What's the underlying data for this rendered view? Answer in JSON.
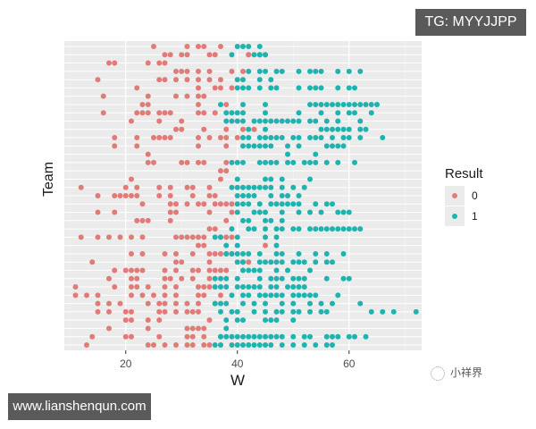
{
  "badges": {
    "top_right": "TG: MYYJJPP",
    "bottom_left": "www.lianshenqun.com"
  },
  "watermark": {
    "icon": "wechat-channel-icon",
    "text": "小祥界"
  },
  "colors": {
    "panel_bg": "#ebebeb",
    "grid_major": "#ffffff",
    "grid_minor": "#f5f5f5",
    "result_0": "#e07b77",
    "result_1": "#1fb3b0"
  },
  "chart_data": {
    "type": "scatter",
    "title": "",
    "xlabel": "W",
    "ylabel": "Team",
    "xlim": [
      9,
      73
    ],
    "x_ticks": [
      20,
      40,
      60
    ],
    "x_tick_labels": [
      "20",
      "40",
      "60"
    ],
    "y_ticks_shown": false,
    "grid": true,
    "legend": {
      "title": "Result",
      "position": "right",
      "entries": [
        {
          "label": "0",
          "color": "#e07b77"
        },
        {
          "label": "1",
          "color": "#1fb3b0"
        }
      ]
    },
    "rows": [
      {
        "zero": [
          25,
          31,
          33,
          34,
          37
        ],
        "one": [
          40,
          41,
          42,
          44
        ]
      },
      {
        "zero": [
          27,
          28,
          30,
          31,
          35,
          36,
          42,
          42
        ],
        "one": [
          39,
          44,
          45,
          43,
          44,
          45
        ]
      },
      {
        "zero": [
          17,
          18,
          24,
          26,
          27
        ],
        "one": []
      },
      {
        "zero": [
          29,
          30,
          31,
          33,
          35,
          39,
          41
        ],
        "one": [
          42,
          44,
          45,
          47,
          48,
          51,
          53,
          54,
          55,
          58,
          60,
          62
        ]
      },
      {
        "zero": [
          15,
          26,
          27,
          29,
          31,
          33,
          35,
          37
        ],
        "one": [
          40,
          41,
          44,
          46
        ]
      },
      {
        "zero": [
          22,
          33,
          36,
          37,
          39
        ],
        "one": [
          40,
          41,
          42,
          44,
          46,
          47,
          51,
          53,
          54,
          55,
          58,
          60,
          61
        ]
      },
      {
        "zero": [
          16,
          24,
          29,
          31,
          33,
          34
        ],
        "one": []
      },
      {
        "zero": [
          23,
          24,
          33,
          38
        ],
        "one": [
          37,
          41,
          45,
          53,
          54,
          55,
          56,
          57,
          58,
          59,
          60,
          61,
          62,
          63,
          64,
          65
        ]
      },
      {
        "zero": [
          16,
          22,
          23,
          24,
          26,
          27,
          28,
          33,
          34,
          36
        ],
        "one": [
          38,
          39,
          40,
          41,
          45,
          51,
          55,
          58,
          60,
          61,
          64
        ]
      },
      {
        "zero": [
          21,
          26,
          30,
          40
        ],
        "one": [
          38,
          39,
          40,
          41,
          43,
          44,
          45,
          46,
          47,
          48,
          49,
          50,
          51,
          53,
          54,
          56,
          58,
          62
        ]
      },
      {
        "zero": [
          29,
          30,
          34,
          38,
          41,
          43
        ],
        "one": [
          42,
          45,
          55,
          56,
          57,
          58,
          59,
          60,
          62,
          63
        ]
      },
      {
        "zero": [
          18,
          22,
          25,
          26,
          27,
          28,
          33,
          35,
          37,
          38,
          40
        ],
        "one": [
          41,
          42,
          44,
          45,
          46,
          47,
          48,
          50,
          51,
          53,
          54,
          55,
          57,
          59,
          60,
          62,
          66
        ]
      },
      {
        "zero": [
          18,
          22,
          33,
          38
        ],
        "one": [
          41,
          42,
          43,
          44,
          45,
          46,
          49,
          51,
          56,
          57,
          58,
          59
        ]
      },
      {
        "zero": [
          24
        ],
        "one": [
          49,
          54
        ]
      },
      {
        "zero": [
          24,
          25,
          30,
          31,
          33,
          34,
          38
        ],
        "one": [
          39,
          40,
          41,
          44,
          45,
          46,
          47,
          49,
          50,
          52,
          53,
          54,
          56,
          58,
          61
        ]
      },
      {
        "zero": [
          37,
          38
        ],
        "one": []
      },
      {
        "zero": [
          21,
          37
        ],
        "one": [
          40,
          45,
          46,
          48,
          53
        ]
      },
      {
        "zero": [
          12,
          20,
          22,
          26,
          28,
          31,
          32,
          35
        ],
        "one": [
          39,
          40,
          41,
          42,
          43,
          44,
          45,
          46,
          48,
          50,
          52
        ]
      },
      {
        "zero": [
          15,
          18,
          19,
          20,
          21,
          22,
          26,
          28,
          32,
          35,
          36
        ],
        "one": [
          40,
          41,
          42,
          43,
          46,
          48,
          49,
          51
        ]
      },
      {
        "zero": [
          23,
          28,
          29,
          31,
          33,
          34,
          36,
          37,
          38,
          39
        ],
        "one": [
          40,
          41,
          42,
          44,
          46,
          47,
          48,
          49,
          50,
          51,
          54,
          56,
          57
        ]
      },
      {
        "zero": [
          15,
          18,
          28,
          29,
          35,
          39
        ],
        "one": [
          40,
          43,
          44,
          45,
          48,
          51,
          53,
          55,
          58,
          59,
          60
        ]
      },
      {
        "zero": [
          22,
          23,
          24,
          28,
          38
        ],
        "one": [
          41,
          42,
          45,
          46,
          48
        ]
      },
      {
        "zero": [
          35,
          36
        ],
        "one": [
          39,
          42,
          43,
          45,
          47,
          48,
          50,
          51,
          53,
          54,
          55,
          56,
          57,
          58,
          59,
          60,
          61,
          62
        ]
      },
      {
        "zero": [
          12,
          15,
          17,
          19,
          21,
          23,
          29,
          30,
          31,
          32,
          33,
          34,
          37,
          38,
          39
        ],
        "one": [
          36,
          37,
          40,
          45,
          47
        ]
      },
      {
        "zero": [
          33,
          34,
          45
        ],
        "one": [
          38,
          40,
          47
        ]
      },
      {
        "zero": [
          21,
          23,
          27,
          29,
          32,
          35,
          36,
          37,
          38,
          39
        ],
        "one": [
          38,
          39,
          40,
          41,
          42,
          44,
          47,
          48,
          51,
          54,
          56,
          59
        ]
      },
      {
        "zero": [
          14,
          29,
          30,
          35,
          41,
          42
        ],
        "one": [
          40,
          41,
          44,
          45,
          46,
          47,
          48,
          50,
          51,
          52,
          54,
          56,
          57
        ]
      },
      {
        "zero": [
          18,
          20,
          21,
          22,
          23,
          27,
          29,
          32,
          33,
          35,
          36,
          37,
          38
        ],
        "one": [
          41,
          42,
          43,
          44,
          47,
          49,
          53
        ]
      },
      {
        "zero": [
          17,
          21,
          22,
          27,
          28,
          30,
          32,
          35
        ],
        "one": [
          36,
          37,
          38,
          40,
          44,
          46,
          47,
          48,
          50,
          51,
          52,
          56,
          59,
          60
        ]
      },
      {
        "zero": [
          11,
          18,
          21,
          22,
          24,
          27,
          29,
          33,
          34,
          35
        ],
        "one": [
          36,
          37,
          38,
          40,
          41,
          42,
          43,
          44,
          46,
          47,
          49,
          50,
          51,
          52
        ]
      },
      {
        "zero": [
          11,
          13,
          15,
          21,
          23,
          25,
          27,
          29,
          33,
          34,
          37
        ],
        "one": [
          39,
          41,
          42,
          44,
          45,
          46,
          47,
          48,
          50,
          51,
          52,
          53,
          54,
          58
        ]
      },
      {
        "zero": [
          15,
          17,
          19,
          24,
          26,
          27,
          29,
          31,
          33,
          36
        ],
        "one": [
          36,
          37,
          38,
          41,
          43,
          45,
          48,
          50,
          53,
          55,
          57,
          62
        ]
      },
      {
        "zero": [
          15,
          17,
          20,
          21,
          26,
          27,
          29,
          31,
          32,
          33
        ],
        "one": [
          37,
          39,
          40,
          43,
          45,
          47,
          48,
          50,
          51,
          53,
          55,
          56,
          64,
          66,
          68,
          72
        ]
      },
      {
        "zero": [
          20,
          21,
          24,
          26,
          35
        ],
        "one": [
          38,
          40,
          41,
          45,
          46,
          47,
          50
        ]
      },
      {
        "zero": [
          17,
          24,
          31,
          32,
          33,
          34
        ],
        "one": [
          38
        ]
      },
      {
        "zero": [
          14,
          20,
          21,
          26,
          31,
          32,
          34,
          37
        ],
        "one": [
          37,
          38,
          39,
          40,
          41,
          42,
          43,
          44,
          45,
          46,
          47,
          48,
          50,
          52,
          53,
          56,
          57,
          58,
          60,
          61,
          63
        ]
      },
      {
        "zero": [
          13,
          24,
          25,
          27,
          29,
          31,
          32,
          34,
          35
        ],
        "one": [
          36,
          37,
          39,
          40,
          41,
          42,
          43,
          44,
          45,
          46,
          48,
          50,
          52,
          54,
          56,
          57
        ]
      }
    ]
  }
}
